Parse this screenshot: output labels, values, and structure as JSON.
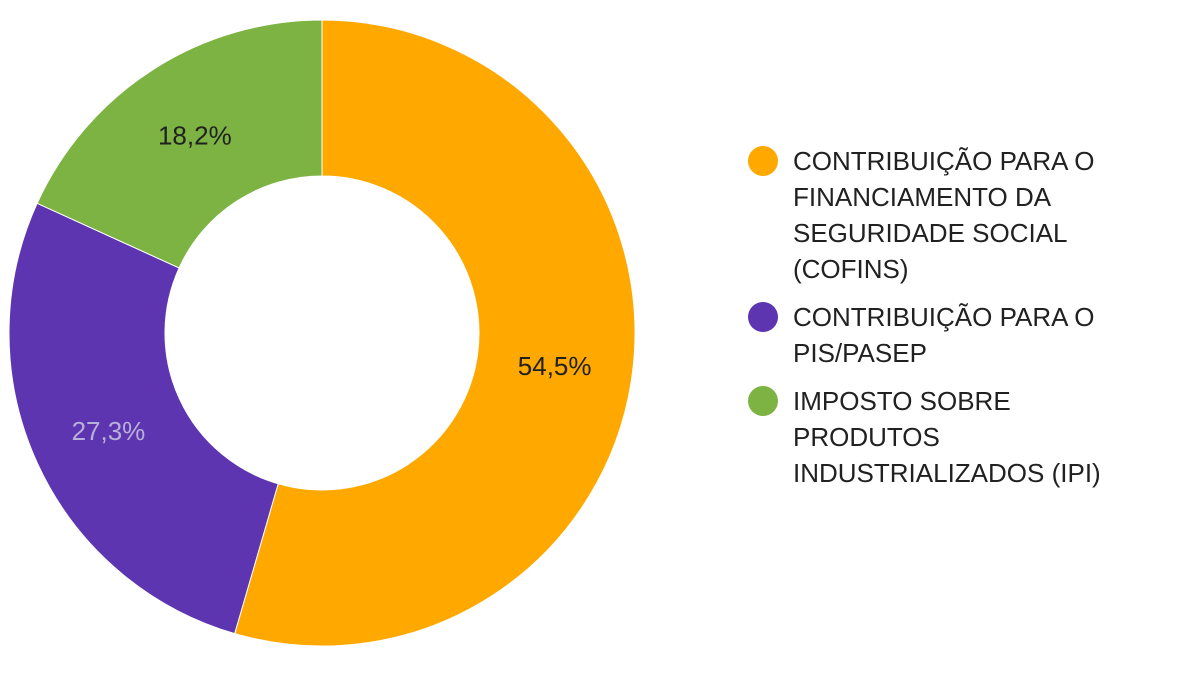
{
  "chart_data": {
    "type": "pie",
    "variant": "donut",
    "legend_position": "right",
    "slices": [
      {
        "name": "CONTRIBUIÇÃO PARA O FINANCIAMENTO DA SEGURIDADE SOCIAL (COFINS)",
        "legend_lines": [
          "CONTRIBUIÇÃO PARA O",
          "FINANCIAMENTO DA",
          "SEGURIDADE SOCIAL",
          "(COFINS)"
        ],
        "value": 54.5,
        "label": "54,5%",
        "color": "#FFA800",
        "label_color": "#212121"
      },
      {
        "name": "CONTRIBUIÇÃO PARA O PIS/PASEP",
        "legend_lines": [
          "CONTRIBUIÇÃO PARA O",
          "PIS/PASEP"
        ],
        "value": 27.3,
        "label": "27,3%",
        "color": "#5E35B1",
        "label_color": "#B8B0D8"
      },
      {
        "name": "IMPOSTO SOBRE PRODUTOS INDUSTRIALIZADOS (IPI)",
        "legend_lines": [
          "IMPOSTO SOBRE",
          "PRODUTOS",
          "INDUSTRIALIZADOS (IPI)"
        ],
        "value": 18.2,
        "label": "18,2%",
        "color": "#7CB342",
        "label_color": "#212121"
      }
    ]
  }
}
